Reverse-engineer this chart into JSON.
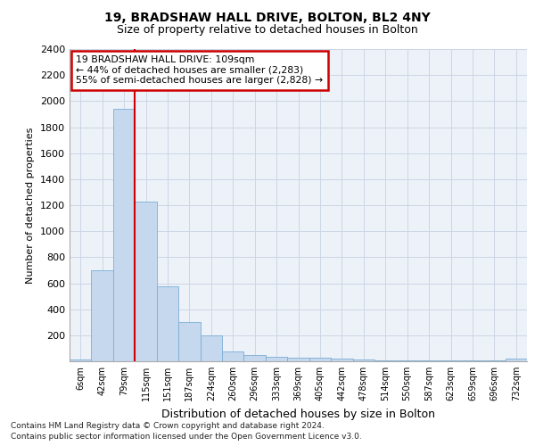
{
  "title1": "19, BRADSHAW HALL DRIVE, BOLTON, BL2 4NY",
  "title2": "Size of property relative to detached houses in Bolton",
  "xlabel": "Distribution of detached houses by size in Bolton",
  "ylabel": "Number of detached properties",
  "bar_labels": [
    "6sqm",
    "42sqm",
    "79sqm",
    "115sqm",
    "151sqm",
    "187sqm",
    "224sqm",
    "260sqm",
    "296sqm",
    "333sqm",
    "369sqm",
    "405sqm",
    "442sqm",
    "478sqm",
    "514sqm",
    "550sqm",
    "587sqm",
    "623sqm",
    "659sqm",
    "696sqm",
    "732sqm"
  ],
  "bar_values": [
    15,
    700,
    1940,
    1230,
    575,
    300,
    200,
    75,
    45,
    35,
    30,
    30,
    20,
    15,
    5,
    5,
    5,
    5,
    5,
    5,
    20
  ],
  "bar_color": "#c5d8ee",
  "bar_edge_color": "#7aaed6",
  "grid_color": "#ccd6e4",
  "red_line_x": 3,
  "annotation_line1": "19 BRADSHAW HALL DRIVE: 109sqm",
  "annotation_line2": "← 44% of detached houses are smaller (2,283)",
  "annotation_line3": "55% of semi-detached houses are larger (2,828) →",
  "annotation_box_color": "#ffffff",
  "annotation_box_edge": "#cc0000",
  "ylim_max": 2400,
  "yticks": [
    0,
    200,
    400,
    600,
    800,
    1000,
    1200,
    1400,
    1600,
    1800,
    2000,
    2200,
    2400
  ],
  "footnote1": "Contains HM Land Registry data © Crown copyright and database right 2024.",
  "footnote2": "Contains public sector information licensed under the Open Government Licence v3.0.",
  "red_line_color": "#cc0000",
  "bg_color": "#edf2f9"
}
